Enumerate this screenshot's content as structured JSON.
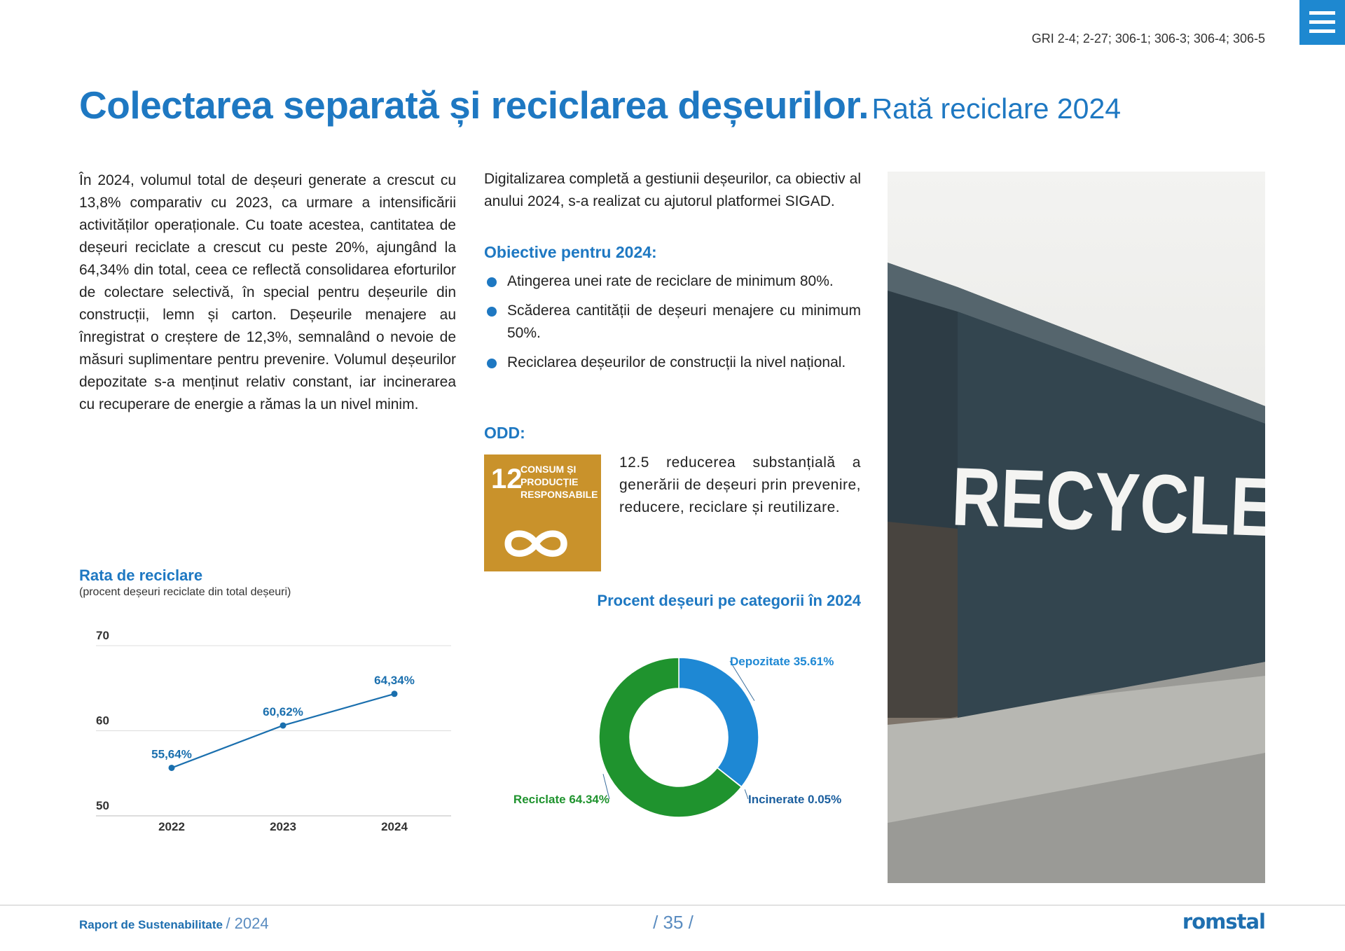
{
  "header": {
    "gri": "GRI 2-4; 2-27; 306-1; 306-3; 306-4; 306-5"
  },
  "title": {
    "main": "Colectarea separată și reciclarea deșeurilor.",
    "sub": "Rată reciclare 2024"
  },
  "intro": "În 2024, volumul total de deșeuri generate a crescut cu 13,8% comparativ cu 2023, ca urmare a intensificării activităților operaționale. Cu toate acestea, cantitatea de deșeuri reciclate a crescut cu peste 20%, ajungând la 64,34% din total, ceea ce reflectă consolidarea eforturilor de colectare selectivă, în special pentru deșeurile din construcții, lemn și carton. Deșeurile menajere au înregistrat o creștere de 12,3%, semnalând o nevoie de măsuri suplimentare pentru prevenire. Volumul deșeurilor depozitate s-a menținut relativ constant, iar incinerarea cu recuperare de energie a rămas la un nivel minim.",
  "digital": "Digitalizarea completă a gestiunii deșeurilor, ca obiectiv al anului 2024, s-a realizat cu ajutorul platformei SIGAD.",
  "objectives": {
    "heading": "Obiective pentru 2024:",
    "items": [
      "Atingerea unei rate de reciclare de minimum 80%.",
      "Scăderea cantității de deșeuri menajere cu minimum 50%.",
      "Reciclarea deșeurilor de construcții la nivel național."
    ]
  },
  "odd": {
    "heading": "ODD:",
    "icon_number": "12",
    "icon_lines": [
      "CONSUM ȘI",
      "PRODUCȚIE",
      "RESPONSABILE"
    ],
    "text": "12.5 reducerea substanțială a generării de deșeuri prin prevenire, reducere, reciclare și reutilizare."
  },
  "photo": {
    "text": "RECYCLE"
  },
  "chart_data": [
    {
      "type": "line",
      "title": "Rata de reciclare",
      "subtitle": "(procent deșeuri reciclate din total deșeuri)",
      "categories": [
        "2022",
        "2023",
        "2024"
      ],
      "values": [
        55.64,
        60.62,
        64.34
      ],
      "value_labels": [
        "55,64%",
        "60,62%",
        "64,34%"
      ],
      "color": "#1a6fae",
      "ylim": [
        50,
        70
      ],
      "yticks": [
        50,
        60,
        70
      ],
      "grid": true
    },
    {
      "type": "donut",
      "title": "Procent deșeuri pe categorii în 2024",
      "categories": [
        "Depozitate",
        "Incinerate",
        "Reciclate"
      ],
      "values": [
        35.61,
        0.05,
        64.34
      ],
      "value_labels": [
        "35.61%",
        "0.05%",
        "64.34%"
      ],
      "colors": [
        "#1e88d4",
        "#1a5e9e",
        "#1f932e"
      ]
    }
  ],
  "footer": {
    "report": "Raport de Sustenabilitate",
    "year": "/ 2024",
    "page": "/ 35 /",
    "logo": "romstal"
  }
}
